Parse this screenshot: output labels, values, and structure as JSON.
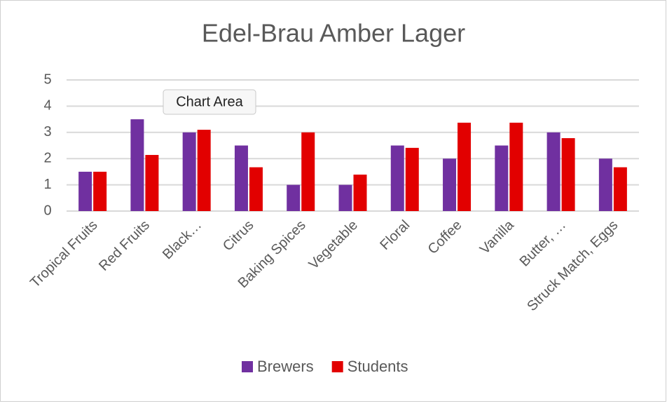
{
  "chart_data": {
    "type": "bar",
    "title": "Edel-Brau Amber Lager",
    "categories": [
      "Tropical Fruits",
      "Red Fruits",
      "Black…",
      "Citrus",
      "Baking Spices",
      "Vegetable",
      "Floral",
      "Coffee",
      "Vanilla",
      "Butter, …",
      "Struck Match, Eggs"
    ],
    "series": [
      {
        "name": "Brewers",
        "color": "#7030a0",
        "values": [
          1.5,
          3.5,
          3,
          2.5,
          1,
          1,
          2.5,
          2,
          2.5,
          3,
          2
        ]
      },
      {
        "name": "Students",
        "color": "#e20000",
        "values": [
          1.5,
          2.14,
          3.1,
          1.67,
          3,
          1.39,
          2.41,
          3.37,
          3.37,
          2.78,
          1.67
        ]
      }
    ],
    "ylim": [
      0,
      5
    ],
    "yticks": [
      0,
      1,
      2,
      3,
      4,
      5
    ],
    "grid": true,
    "legend": "bottom"
  },
  "tooltip": "Chart Area"
}
